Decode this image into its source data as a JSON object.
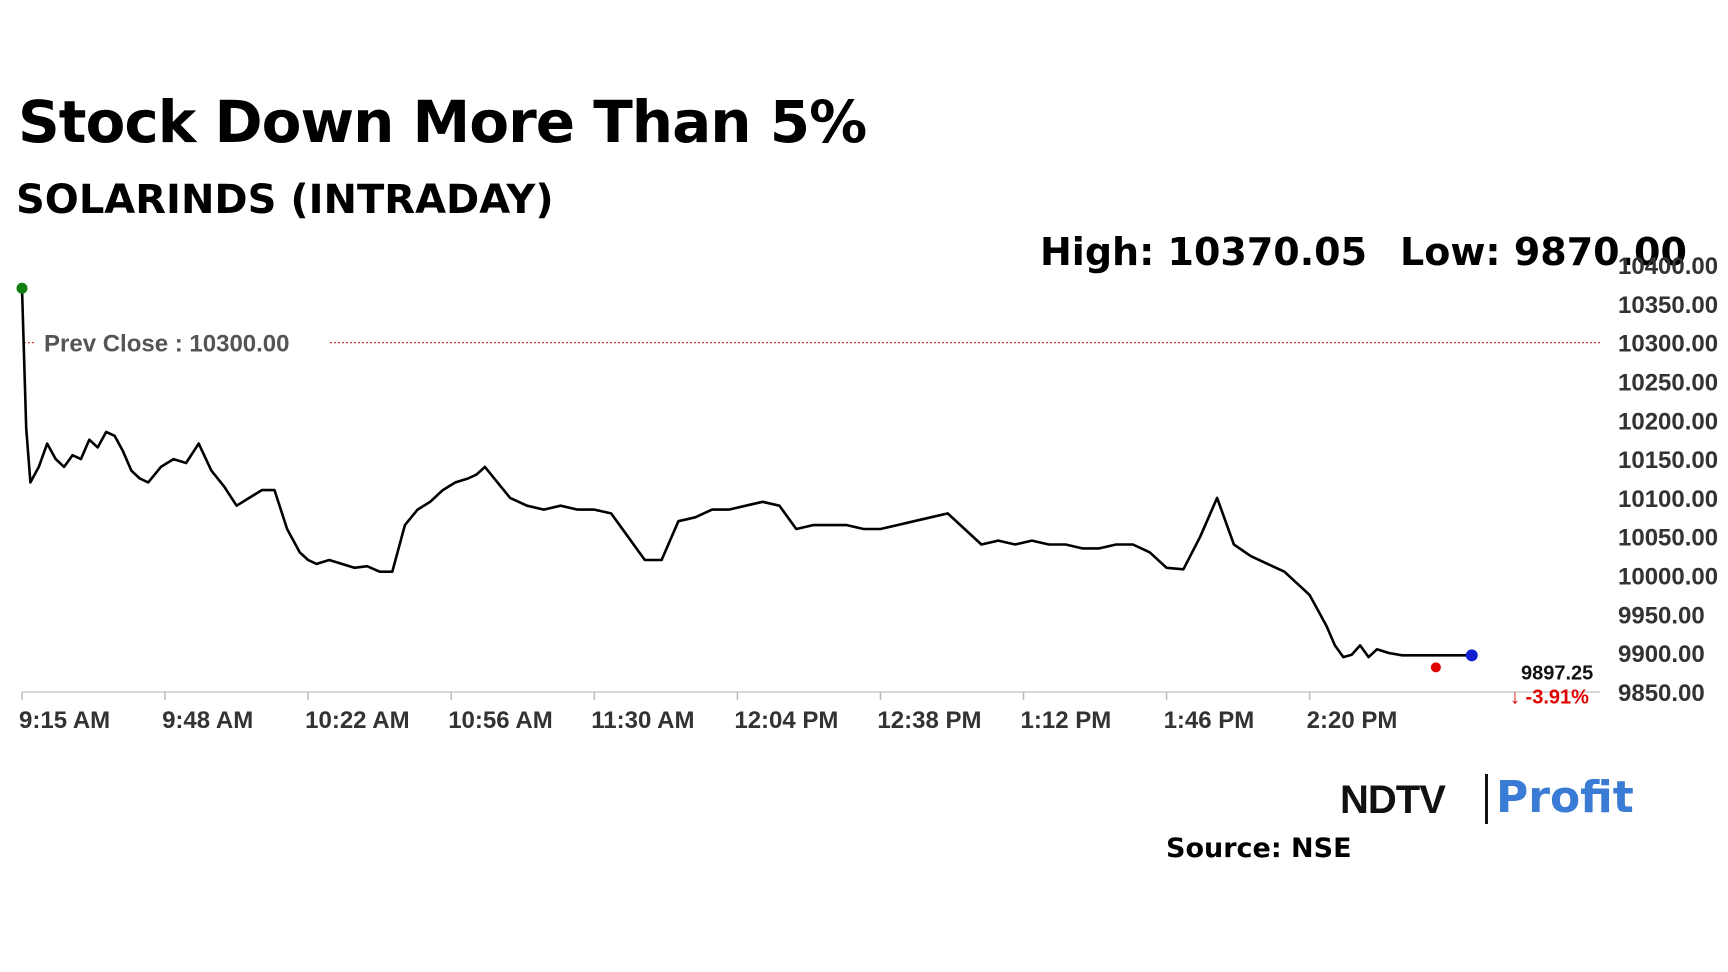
{
  "header": {
    "title": "Stock Down More Than 5%",
    "subtitle": "SOLARINDS (INTRADAY)",
    "high": "High: 10370.05",
    "low": "Low: 9870.00"
  },
  "footer": {
    "logo_ndtv": "NDTV",
    "logo_profit": "Profit",
    "source": "Source: NSE"
  },
  "chart_data": {
    "type": "line",
    "title": "Stock Down More Than 5%",
    "subtitle": "SOLARINDS (INTRADAY)",
    "xlabel": "",
    "ylabel": "",
    "x_ticks": [
      "9:15 AM",
      "9:48 AM",
      "10:22 AM",
      "10:56 AM",
      "11:30 AM",
      "12:04 PM",
      "12:38 PM",
      "1:12 PM",
      "1:46 PM",
      "2:20 PM"
    ],
    "y_ticks": [
      "10400.00",
      "10350.00",
      "10300.00",
      "10250.00",
      "10200.00",
      "10150.00",
      "10100.00",
      "10050.00",
      "10000.00",
      "9950.00",
      "9900.00",
      "9850.00"
    ],
    "ylim": [
      9850,
      10400
    ],
    "x_minutes_from_open": [
      0,
      1,
      2,
      4,
      6,
      8,
      10,
      12,
      14,
      16,
      18,
      20,
      22,
      24,
      26,
      28,
      30,
      33,
      36,
      39,
      42,
      45,
      48,
      51,
      54,
      57,
      60,
      63,
      66,
      68,
      70,
      73,
      76,
      79,
      82,
      85,
      88,
      91,
      94,
      97,
      100,
      103,
      106,
      108,
      110,
      113,
      116,
      120,
      124,
      128,
      132,
      136,
      140,
      144,
      148,
      152,
      156,
      160,
      164,
      168,
      172,
      176,
      180,
      184,
      188,
      192,
      196,
      200,
      204,
      208,
      212,
      216,
      220,
      224,
      228,
      232,
      236,
      240,
      244,
      248,
      252,
      256,
      260,
      264,
      268,
      272,
      276,
      280,
      284,
      288,
      292,
      296,
      300,
      304,
      306,
      308,
      310,
      312,
      314,
      316,
      318,
      320,
      322,
      325,
      328,
      330,
      332,
      334,
      336,
      338,
      340,
      342,
      345
    ],
    "series": [
      {
        "name": "",
        "color": "#000000",
        "values": [
          10370,
          10190,
          10120,
          10140,
          10170,
          10150,
          10140,
          10155,
          10150,
          10175,
          10165,
          10185,
          10180,
          10160,
          10135,
          10125,
          10120,
          10140,
          10150,
          10145,
          10170,
          10135,
          10115,
          10090,
          10100,
          10110,
          10110,
          10060,
          10030,
          10020,
          10015,
          10020,
          10015,
          10010,
          10012,
          10005,
          10005,
          10065,
          10085,
          10095,
          10110,
          10120,
          10125,
          10130,
          10140,
          10120,
          10100,
          10090,
          10085,
          10090,
          10085,
          10085,
          10080,
          10050,
          10020,
          10020,
          10070,
          10075,
          10085,
          10085,
          10090,
          10095,
          10090,
          10060,
          10065,
          10065,
          10065,
          10060,
          10060,
          10065,
          10070,
          10075,
          10080,
          10060,
          10040,
          10045,
          10040,
          10045,
          10040,
          10040,
          10035,
          10035,
          10040,
          10040,
          10030,
          10010,
          10008,
          10050,
          10100,
          10040,
          10025,
          10015,
          10005,
          9985,
          9975,
          9955,
          9935,
          9910,
          9895,
          9898,
          9910,
          9895,
          9905,
          9900,
          9897.25,
          9897.25,
          9897.25,
          9897.25,
          9897.25,
          9897.25,
          9897.25,
          9897.25,
          9897.25
        ]
      }
    ],
    "prev_close": 10300.0,
    "prev_close_label": "Prev Close : 10300.00",
    "high": 10370.05,
    "low": 9870.0,
    "last_value": 9897.25,
    "last_label": "9897.25",
    "change_label": "↓ -3.91%",
    "grid": false,
    "colors": {
      "line": "#000000",
      "prev_close": "#d04040",
      "open_marker": "#108010",
      "low_marker": "#e00000",
      "last_marker": "#1020d0",
      "axis": "#cccccc"
    }
  }
}
